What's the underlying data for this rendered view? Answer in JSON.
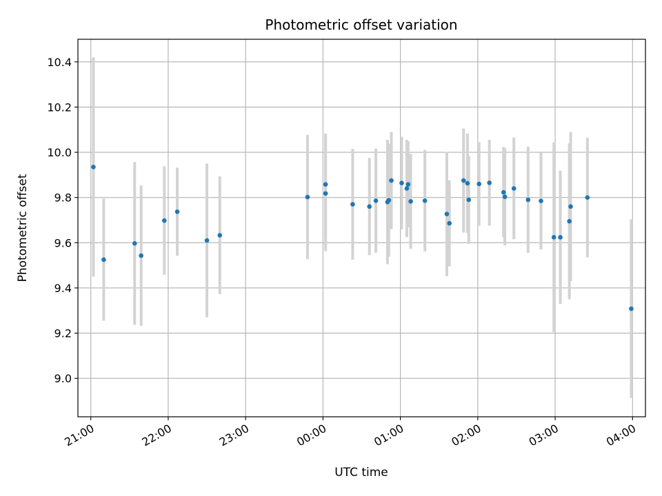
{
  "chart_data": {
    "type": "scatter",
    "title": "Photometric offset variation",
    "xlabel": "UTC time",
    "ylabel": "Photometric offset",
    "xlim": [
      "20:50",
      "04:10"
    ],
    "ylim": [
      8.83,
      10.5
    ],
    "x_ticks": [
      "21:00",
      "22:00",
      "23:00",
      "00:00",
      "01:00",
      "02:00",
      "03:00",
      "04:00"
    ],
    "y_ticks": [
      "9.0",
      "9.2",
      "9.4",
      "9.6",
      "9.8",
      "10.0",
      "10.2",
      "10.4"
    ],
    "grid": true,
    "colors": {
      "point": "#1f77b4",
      "errorbar": "#d3d3d3",
      "grid": "#b0b0b0"
    },
    "points": [
      {
        "x": "21:02",
        "y": 9.935,
        "err": 0.485
      },
      {
        "x": "21:10",
        "y": 9.525,
        "err": 0.27
      },
      {
        "x": "21:34",
        "y": 9.597,
        "err": 0.36
      },
      {
        "x": "21:39",
        "y": 9.543,
        "err": 0.31
      },
      {
        "x": "21:57",
        "y": 9.698,
        "err": 0.24
      },
      {
        "x": "22:07",
        "y": 9.737,
        "err": 0.195
      },
      {
        "x": "22:30",
        "y": 9.61,
        "err": 0.34
      },
      {
        "x": "22:40",
        "y": 9.633,
        "err": 0.26
      },
      {
        "x": "23:48",
        "y": 9.802,
        "err": 0.275
      },
      {
        "x": "00:02",
        "y": 9.858,
        "err": 0.225
      },
      {
        "x": "00:02",
        "y": 9.818,
        "err": 0.255
      },
      {
        "x": "00:23",
        "y": 9.77,
        "err": 0.245
      },
      {
        "x": "00:36",
        "y": 9.76,
        "err": 0.215
      },
      {
        "x": "00:41",
        "y": 9.786,
        "err": 0.23
      },
      {
        "x": "00:50",
        "y": 9.78,
        "err": 0.275
      },
      {
        "x": "00:51",
        "y": 9.788,
        "err": 0.25
      },
      {
        "x": "00:53",
        "y": 9.875,
        "err": 0.215
      },
      {
        "x": "01:01",
        "y": 9.864,
        "err": 0.205
      },
      {
        "x": "01:05",
        "y": 9.84,
        "err": 0.215
      },
      {
        "x": "01:06",
        "y": 9.858,
        "err": 0.19
      },
      {
        "x": "01:08",
        "y": 9.783,
        "err": 0.21
      },
      {
        "x": "01:19",
        "y": 9.786,
        "err": 0.225
      },
      {
        "x": "01:36",
        "y": 9.727,
        "err": 0.275
      },
      {
        "x": "01:38",
        "y": 9.686,
        "err": 0.19
      },
      {
        "x": "01:49",
        "y": 9.875,
        "err": 0.23
      },
      {
        "x": "01:52",
        "y": 9.863,
        "err": 0.22
      },
      {
        "x": "01:53",
        "y": 9.79,
        "err": 0.195
      },
      {
        "x": "02:01",
        "y": 9.86,
        "err": 0.185
      },
      {
        "x": "02:09",
        "y": 9.865,
        "err": 0.19
      },
      {
        "x": "02:20",
        "y": 9.823,
        "err": 0.2
      },
      {
        "x": "02:21",
        "y": 9.803,
        "err": 0.215
      },
      {
        "x": "02:28",
        "y": 9.84,
        "err": 0.225
      },
      {
        "x": "02:39",
        "y": 9.79,
        "err": 0.235
      },
      {
        "x": "02:49",
        "y": 9.785,
        "err": 0.215
      },
      {
        "x": "02:59",
        "y": 9.624,
        "err": 0.42
      },
      {
        "x": "03:04",
        "y": 9.624,
        "err": 0.295
      },
      {
        "x": "03:11",
        "y": 9.695,
        "err": 0.345
      },
      {
        "x": "03:12",
        "y": 9.76,
        "err": 0.33
      },
      {
        "x": "03:25",
        "y": 9.8,
        "err": 0.265
      },
      {
        "x": "03:59",
        "y": 9.308,
        "err": 0.395
      }
    ]
  }
}
